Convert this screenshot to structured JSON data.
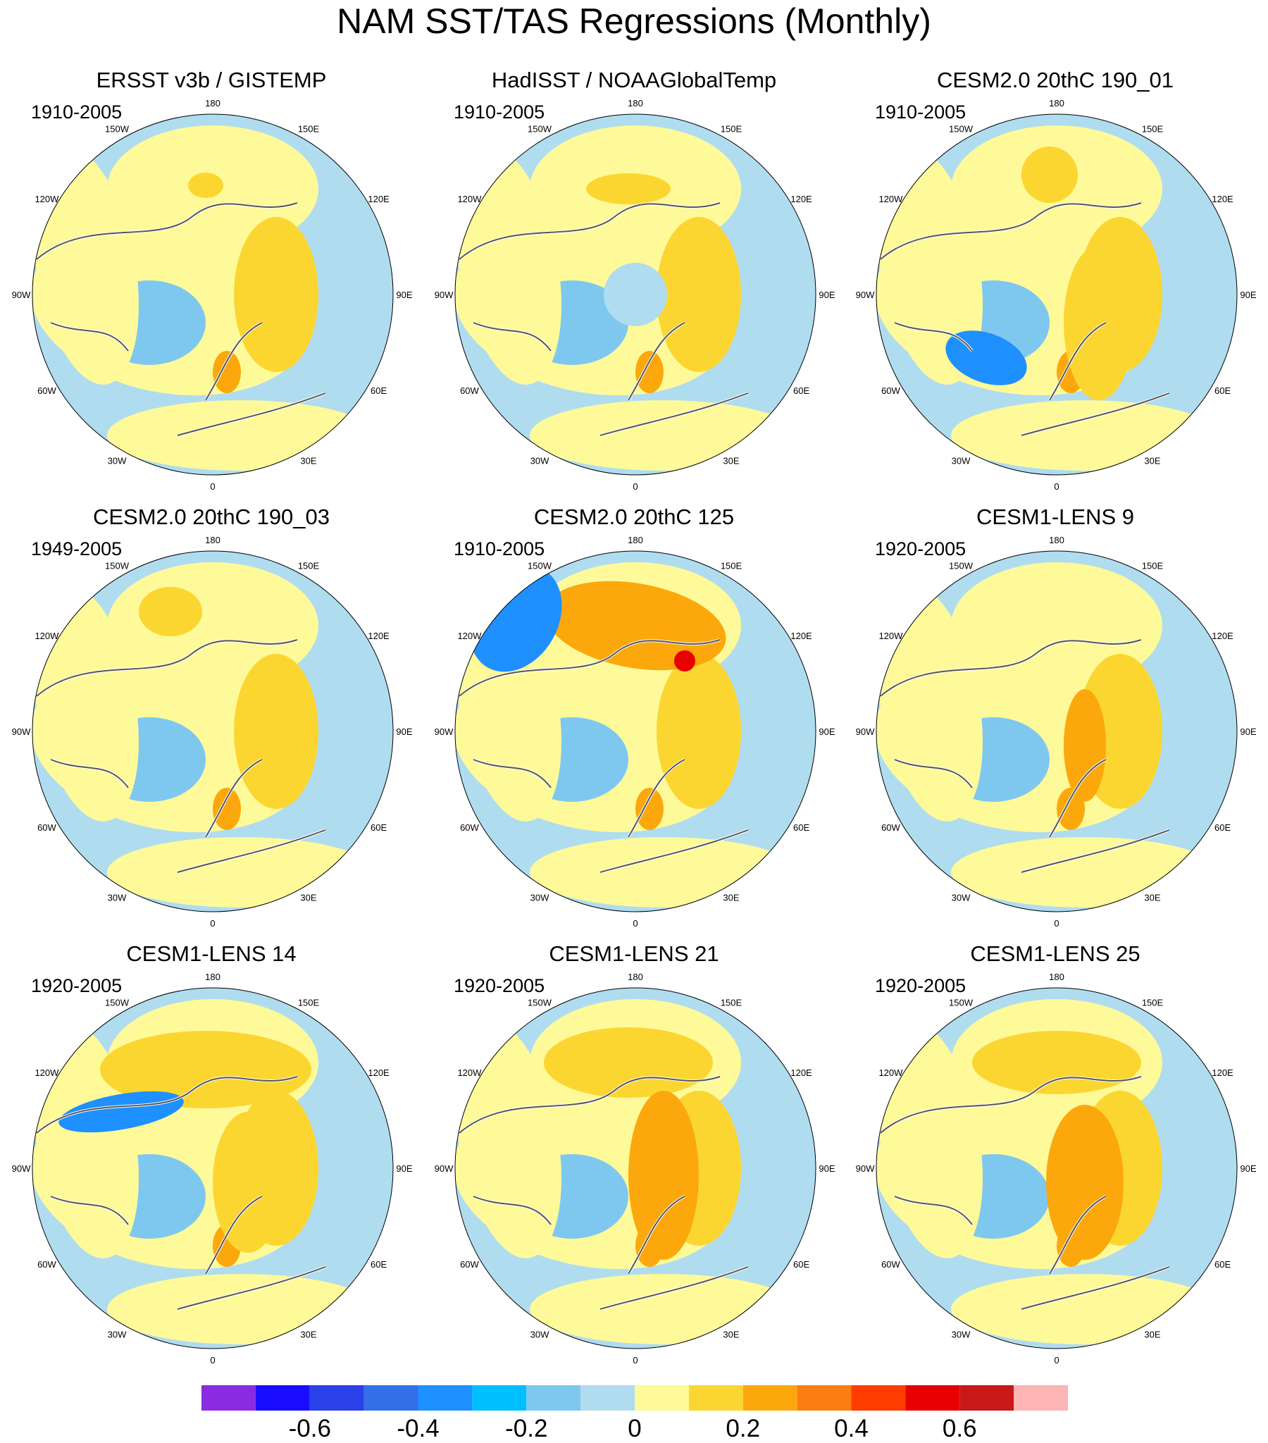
{
  "title": "NAM SST/TAS Regressions (Monthly)",
  "panels": [
    {
      "title": "ERSST v3b / GISTEMP",
      "period": "1910-2005"
    },
    {
      "title": "HadISST / NOAAGlobalTemp",
      "period": "1910-2005"
    },
    {
      "title": "CESM2.0 20thC 190_01",
      "period": "1910-2005"
    },
    {
      "title": "CESM2.0 20thC 190_03",
      "period": "1949-2005"
    },
    {
      "title": "CESM2.0 20thC 125",
      "period": "1910-2005"
    },
    {
      "title": "CESM1-LENS 9",
      "period": "1920-2005"
    },
    {
      "title": "CESM1-LENS 14",
      "period": "1920-2005"
    },
    {
      "title": "CESM1-LENS 21",
      "period": "1920-2005"
    },
    {
      "title": "CESM1-LENS 25",
      "period": "1920-2005"
    }
  ],
  "longitude_labels": [
    "180",
    "150E",
    "120E",
    "90E",
    "60E",
    "30E",
    "0",
    "30W",
    "60W",
    "90W",
    "120W",
    "150W"
  ],
  "colorbar": {
    "colors": [
      "#8a2be2",
      "#1a0dff",
      "#2a40e8",
      "#3370e8",
      "#1e90ff",
      "#00bfff",
      "#7ec8f0",
      "#b0dcf0",
      "#fefa9a",
      "#fcd630",
      "#fca80c",
      "#fc7e10",
      "#ff3c00",
      "#e80000",
      "#c81818",
      "#fcb4b4"
    ],
    "labels": [
      "-0.6",
      "-0.4",
      "-0.2",
      "0",
      "0.2",
      "0.4",
      "0.6"
    ],
    "label_values": [
      -0.6,
      -0.4,
      -0.2,
      0,
      0.2,
      0.4,
      0.6
    ]
  }
}
